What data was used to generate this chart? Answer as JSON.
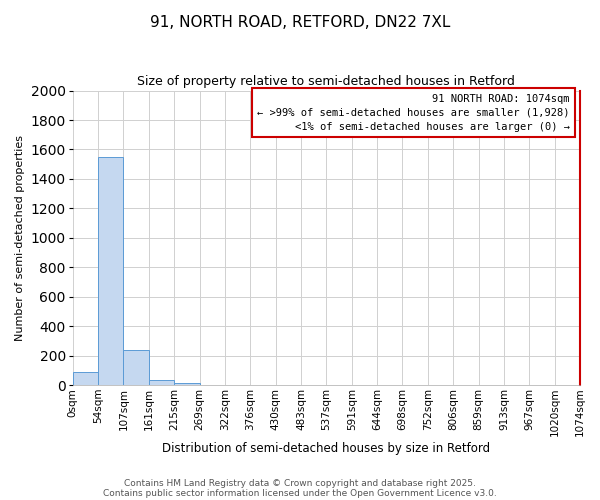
{
  "title": "91, NORTH ROAD, RETFORD, DN22 7XL",
  "subtitle": "Size of property relative to semi-detached houses in Retford",
  "xlabel": "Distribution of semi-detached houses by size in Retford",
  "ylabel": "Number of semi-detached properties",
  "bin_labels": [
    "0sqm",
    "54sqm",
    "107sqm",
    "161sqm",
    "215sqm",
    "269sqm",
    "322sqm",
    "376sqm",
    "430sqm",
    "483sqm",
    "537sqm",
    "591sqm",
    "644sqm",
    "698sqm",
    "752sqm",
    "806sqm",
    "859sqm",
    "913sqm",
    "967sqm",
    "1020sqm",
    "1074sqm"
  ],
  "bar_heights": [
    90,
    1550,
    240,
    35,
    15,
    0,
    0,
    0,
    0,
    0,
    0,
    0,
    0,
    0,
    0,
    0,
    0,
    0,
    0,
    0
  ],
  "bar_color": "#c5d8f0",
  "bar_edge_color": "#5b9bd5",
  "ylim": [
    0,
    2000
  ],
  "yticks": [
    0,
    200,
    400,
    600,
    800,
    1000,
    1200,
    1400,
    1600,
    1800,
    2000
  ],
  "annotation_title": "91 NORTH ROAD: 1074sqm",
  "annotation_line1": "← >99% of semi-detached houses are smaller (1,928)",
  "annotation_line2": "<1% of semi-detached houses are larger (0) →",
  "annotation_box_color": "#ffffff",
  "annotation_border_color": "#cc0000",
  "footer_line1": "Contains HM Land Registry data © Crown copyright and database right 2025.",
  "footer_line2": "Contains public sector information licensed under the Open Government Licence v3.0.",
  "background_color": "#ffffff",
  "grid_color": "#d0d0d0",
  "title_fontsize": 11,
  "subtitle_fontsize": 9,
  "ylabel_fontsize": 8,
  "xlabel_fontsize": 8.5,
  "tick_fontsize": 7.5,
  "footer_fontsize": 6.5,
  "annot_fontsize": 7.5
}
